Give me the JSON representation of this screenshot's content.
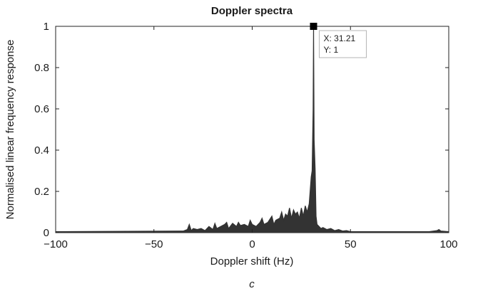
{
  "chart_data": {
    "type": "line",
    "title": "Doppler spectra",
    "xlabel": "Doppler shift (Hz)",
    "ylabel": "Normalised linear frequency response",
    "xlim": [
      -100,
      100
    ],
    "ylim": [
      0,
      1
    ],
    "xticks": [
      -100,
      -50,
      0,
      50,
      100
    ],
    "xtick_labels": [
      "−100",
      "−50",
      "0",
      "50",
      "100"
    ],
    "yticks": [
      0,
      0.2,
      0.4,
      0.6,
      0.8,
      1
    ],
    "ytick_labels": [
      "0",
      "0.2",
      "0.4",
      "0.6",
      "0.8",
      "1"
    ],
    "grid": false,
    "legend": "none",
    "line_color": "#333333",
    "series": [
      {
        "x": [
          -100,
          -35,
          -33,
          -32,
          -31,
          -30,
          -28,
          -26,
          -24,
          -22,
          -20,
          -19,
          -18,
          -16,
          -14,
          -13,
          -12,
          -10,
          -8,
          -7,
          -6,
          -4,
          -2,
          -1,
          0,
          2,
          4,
          5,
          6,
          8,
          10,
          11,
          12,
          14,
          15,
          16,
          17,
          18,
          19,
          20,
          21,
          22,
          23,
          24,
          25,
          26,
          27,
          28,
          29,
          30,
          30.5,
          31,
          31.21,
          31.5,
          32,
          32.5,
          33,
          34,
          35,
          36,
          38,
          40,
          42,
          44,
          46,
          48,
          50,
          60,
          90,
          94,
          95,
          96,
          100
        ],
        "y": [
          0.005,
          0.008,
          0.015,
          0.04,
          0.01,
          0.02,
          0.015,
          0.02,
          0.01,
          0.03,
          0.015,
          0.045,
          0.02,
          0.03,
          0.04,
          0.05,
          0.02,
          0.045,
          0.03,
          0.05,
          0.035,
          0.04,
          0.03,
          0.06,
          0.04,
          0.03,
          0.05,
          0.07,
          0.04,
          0.05,
          0.08,
          0.04,
          0.06,
          0.07,
          0.1,
          0.06,
          0.09,
          0.08,
          0.12,
          0.07,
          0.11,
          0.09,
          0.1,
          0.07,
          0.12,
          0.08,
          0.13,
          0.1,
          0.14,
          0.27,
          0.3,
          0.6,
          1,
          0.45,
          0.31,
          0.08,
          0.04,
          0.03,
          0.02,
          0.025,
          0.015,
          0.02,
          0.01,
          0.015,
          0.008,
          0.01,
          0.005,
          0.005,
          0.005,
          0.01,
          0.015,
          0.008,
          0.005
        ]
      }
    ],
    "annotation": {
      "marker_x": 31.21,
      "marker_y": 1,
      "x_text": "X: 31.21",
      "y_text": "Y: 1"
    },
    "caption": "c"
  }
}
